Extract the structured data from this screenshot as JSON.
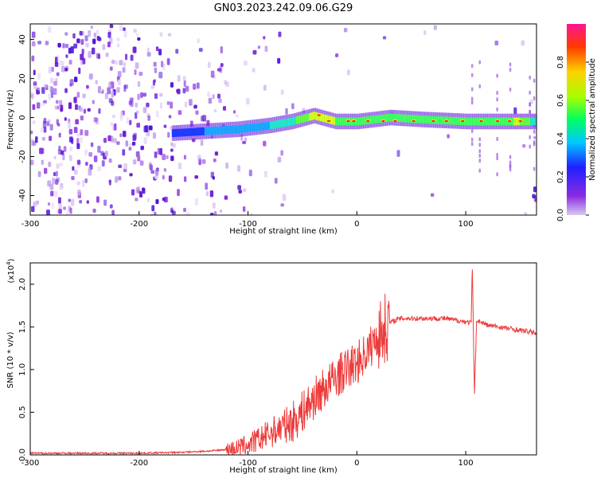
{
  "title": "GN03.2023.242.09.06.G29",
  "colors": {
    "snr_line": "#ee3a3a",
    "colormap": [
      "#9b59d0",
      "#3a0fd8",
      "#0b4dff",
      "#12d6ff",
      "#19ff6a",
      "#b5ff14",
      "#ffd000",
      "#ff7a00",
      "#ff1e1e",
      "#ff1a8c"
    ]
  },
  "chart_data": [
    {
      "type": "heatmap",
      "name": "spectrogram",
      "xlabel": "Height of straight line (km)",
      "ylabel": "Frequency (Hz)",
      "xlim": [
        -300,
        165
      ],
      "ylim": [
        -50,
        48
      ],
      "xticks": [
        -300,
        -200,
        -100,
        0,
        100
      ],
      "yticks": [
        -40,
        -20,
        0,
        20,
        40
      ],
      "colorbar": {
        "label": "Normalized spectral amplitude",
        "range": [
          0.0,
          1.0
        ],
        "ticks": [
          0.0,
          0.2,
          0.4,
          0.6,
          0.8
        ]
      },
      "signal_band": [
        {
          "x": -170,
          "freq": -8,
          "amp": 0.35
        },
        {
          "x": -140,
          "freq": -7,
          "amp": 0.4
        },
        {
          "x": -110,
          "freq": -6,
          "amp": 0.45
        },
        {
          "x": -80,
          "freq": -4,
          "amp": 0.5
        },
        {
          "x": -60,
          "freq": -2,
          "amp": 0.55
        },
        {
          "x": -40,
          "freq": 1,
          "amp": 0.8
        },
        {
          "x": -20,
          "freq": -2,
          "amp": 0.85
        },
        {
          "x": 0,
          "freq": -2,
          "amp": 0.9
        },
        {
          "x": 30,
          "freq": 0,
          "amp": 0.9
        },
        {
          "x": 60,
          "freq": -1,
          "amp": 0.9
        },
        {
          "x": 100,
          "freq": -2,
          "amp": 0.9
        },
        {
          "x": 140,
          "freq": -2,
          "amp": 0.9
        },
        {
          "x": 165,
          "freq": -2,
          "amp": 0.5
        }
      ]
    },
    {
      "type": "line",
      "name": "snr",
      "xlabel": "Height of straight line (km)",
      "ylabel": "SNR (10 * v/v)",
      "yscale_label": "(x10",
      "yscale_exp": "4",
      "xlim": [
        -300,
        165
      ],
      "ylim": [
        0,
        2.25
      ],
      "xticks": [
        -300,
        -200,
        -100,
        0,
        100
      ],
      "yticks": [
        0.0,
        0.5,
        1.0,
        1.5,
        2.0
      ],
      "x": [
        -300,
        -250,
        -200,
        -160,
        -130,
        -110,
        -100,
        -90,
        -80,
        -70,
        -60,
        -50,
        -40,
        -30,
        -20,
        -10,
        0,
        10,
        20,
        30,
        40,
        50,
        60,
        70,
        80,
        90,
        100,
        105,
        106,
        108,
        110,
        120,
        130,
        140,
        150,
        165
      ],
      "y": [
        0.02,
        0.02,
        0.02,
        0.03,
        0.05,
        0.08,
        0.12,
        0.18,
        0.25,
        0.32,
        0.38,
        0.5,
        0.65,
        0.78,
        0.9,
        1.0,
        1.08,
        1.22,
        1.4,
        1.55,
        1.6,
        1.6,
        1.6,
        1.6,
        1.6,
        1.58,
        1.56,
        1.55,
        2.25,
        0.7,
        1.58,
        1.52,
        1.5,
        1.48,
        1.46,
        1.43
      ]
    }
  ]
}
